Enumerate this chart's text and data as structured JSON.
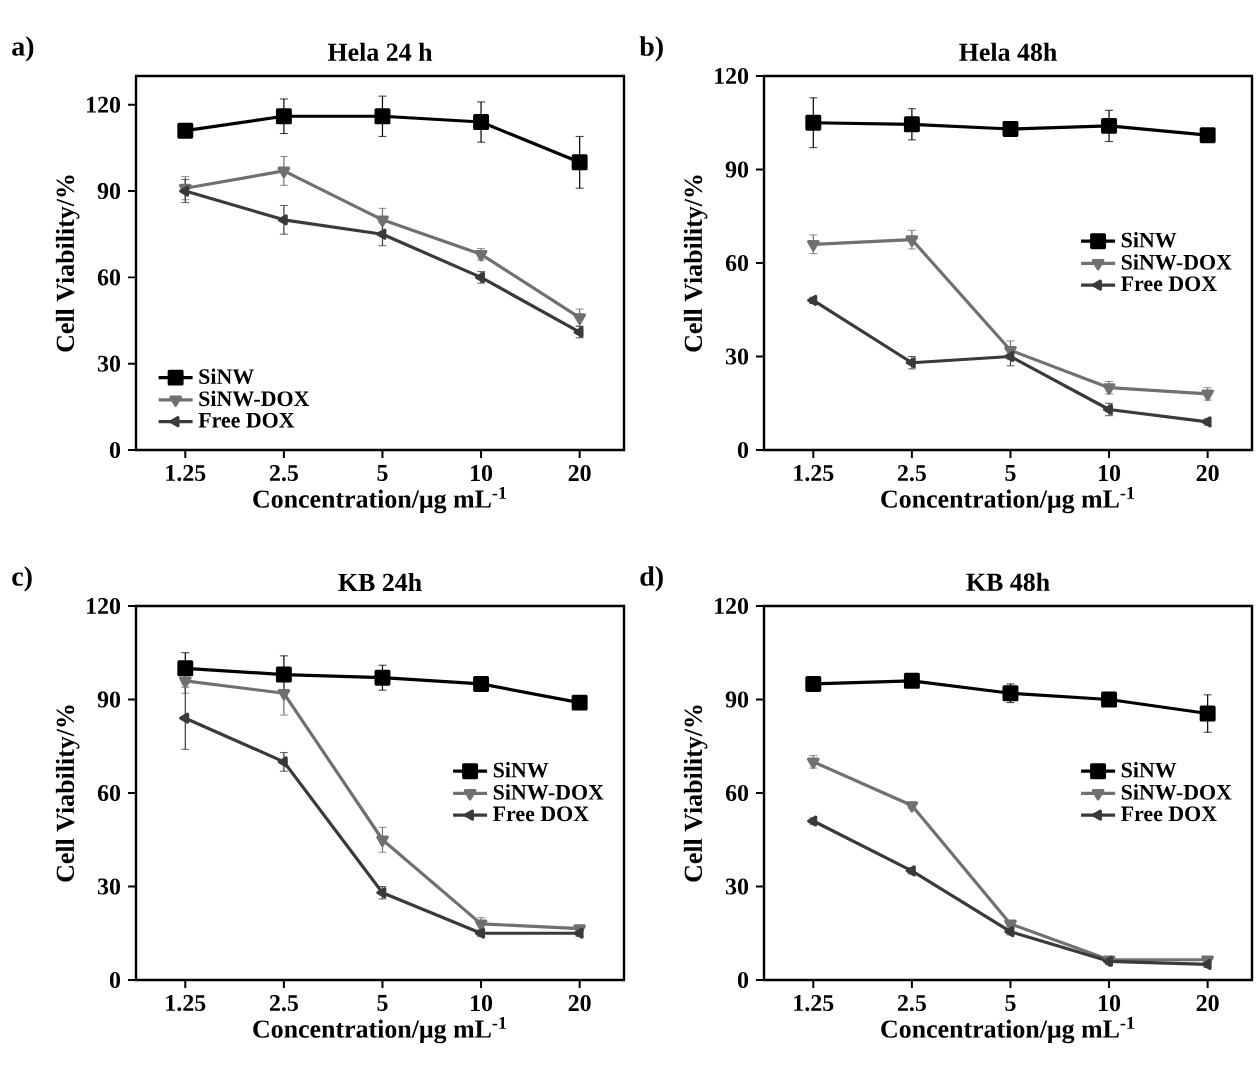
{
  "chart_data": [
    {
      "type": "line",
      "title": "Hela 24 h",
      "annotations": [
        "a)"
      ],
      "xlabel": "Concentration/μg mL$^{-1}$",
      "ylabel": "Cell Viability/%",
      "categories": [
        "1.25",
        "2.5",
        "5",
        "10",
        "20"
      ],
      "ylim": [
        0,
        130
      ],
      "yticks": [
        0,
        30,
        60,
        90,
        120
      ],
      "legend": "bottom left",
      "series": [
        {
          "name": "SiNW",
          "color": "#000000",
          "marker": "square",
          "values": [
            111,
            116,
            116,
            114,
            100
          ],
          "errors": [
            2,
            6,
            7,
            7,
            9
          ]
        },
        {
          "name": "SiNW-DOX",
          "color": "#707070",
          "marker": "triangle-down",
          "values": [
            91,
            97,
            80,
            68,
            46
          ],
          "errors": [
            4,
            5,
            4,
            2,
            3
          ]
        },
        {
          "name": "Free DOX",
          "color": "#3a3a3a",
          "marker": "triangle-left",
          "values": [
            90,
            80,
            75,
            60,
            41
          ],
          "errors": [
            4,
            5,
            4,
            2,
            2
          ]
        }
      ]
    },
    {
      "type": "line",
      "title": "Hela 48h",
      "annotations": [
        "b)"
      ],
      "xlabel": "Concentration/μg mL$^{-1}$",
      "ylabel": "Cell Viability/%",
      "categories": [
        "1.25",
        "2.5",
        "5",
        "10",
        "20"
      ],
      "ylim": [
        0,
        120
      ],
      "yticks": [
        0,
        30,
        60,
        90,
        120
      ],
      "legend": "right",
      "series": [
        {
          "name": "SiNW",
          "color": "#000000",
          "marker": "square",
          "values": [
            105,
            104.5,
            103,
            104,
            101
          ],
          "errors": [
            8,
            5,
            2,
            5,
            2
          ]
        },
        {
          "name": "SiNW-DOX",
          "color": "#707070",
          "marker": "triangle-down",
          "values": [
            66,
            67.5,
            32,
            20,
            18
          ],
          "errors": [
            3,
            3,
            3,
            2,
            2
          ]
        },
        {
          "name": "Free DOX",
          "color": "#3a3a3a",
          "marker": "triangle-left",
          "values": [
            48,
            28,
            30,
            13,
            9
          ],
          "errors": [
            1,
            2,
            3,
            2,
            1
          ]
        }
      ]
    },
    {
      "type": "line",
      "title": "KB 24h",
      "annotations": [
        "c)"
      ],
      "xlabel": "Concentration/μg mL$^{-1}$",
      "ylabel": "Cell Viability/%",
      "categories": [
        "1.25",
        "2.5",
        "5",
        "10",
        "20"
      ],
      "ylim": [
        0,
        120
      ],
      "yticks": [
        0,
        30,
        60,
        90,
        120
      ],
      "legend": "right",
      "series": [
        {
          "name": "SiNW",
          "color": "#000000",
          "marker": "square",
          "values": [
            100,
            98,
            97,
            95,
            89
          ],
          "errors": [
            5,
            6,
            4,
            2,
            1
          ]
        },
        {
          "name": "SiNW-DOX",
          "color": "#707070",
          "marker": "triangle-down",
          "values": [
            96,
            92,
            45,
            18,
            16.5
          ],
          "errors": [
            4,
            7,
            4,
            2,
            1
          ]
        },
        {
          "name": "Free DOX",
          "color": "#3a3a3a",
          "marker": "triangle-left",
          "values": [
            84,
            70,
            28,
            15,
            15
          ],
          "errors": [
            10,
            3,
            2,
            1,
            1
          ]
        }
      ]
    },
    {
      "type": "line",
      "title": "KB 48h",
      "annotations": [
        "d)"
      ],
      "xlabel": "Concentration/μg mL$^{-1}$",
      "ylabel": "Cell Viability/%",
      "categories": [
        "1.25",
        "2.5",
        "5",
        "10",
        "20"
      ],
      "ylim": [
        0,
        120
      ],
      "yticks": [
        0,
        30,
        60,
        90,
        120
      ],
      "legend": "right",
      "series": [
        {
          "name": "SiNW",
          "color": "#000000",
          "marker": "square",
          "values": [
            95,
            96,
            92,
            90,
            85.5
          ],
          "errors": [
            1,
            1,
            3,
            1,
            6
          ]
        },
        {
          "name": "SiNW-DOX",
          "color": "#707070",
          "marker": "triangle-down",
          "values": [
            70,
            56,
            18,
            6.5,
            6.5
          ],
          "errors": [
            2,
            1,
            1,
            1,
            1
          ]
        },
        {
          "name": "Free DOX",
          "color": "#3a3a3a",
          "marker": "triangle-left",
          "values": [
            51,
            35,
            15.5,
            6,
            5
          ],
          "errors": [
            1,
            1,
            1,
            1,
            1
          ]
        }
      ]
    }
  ]
}
